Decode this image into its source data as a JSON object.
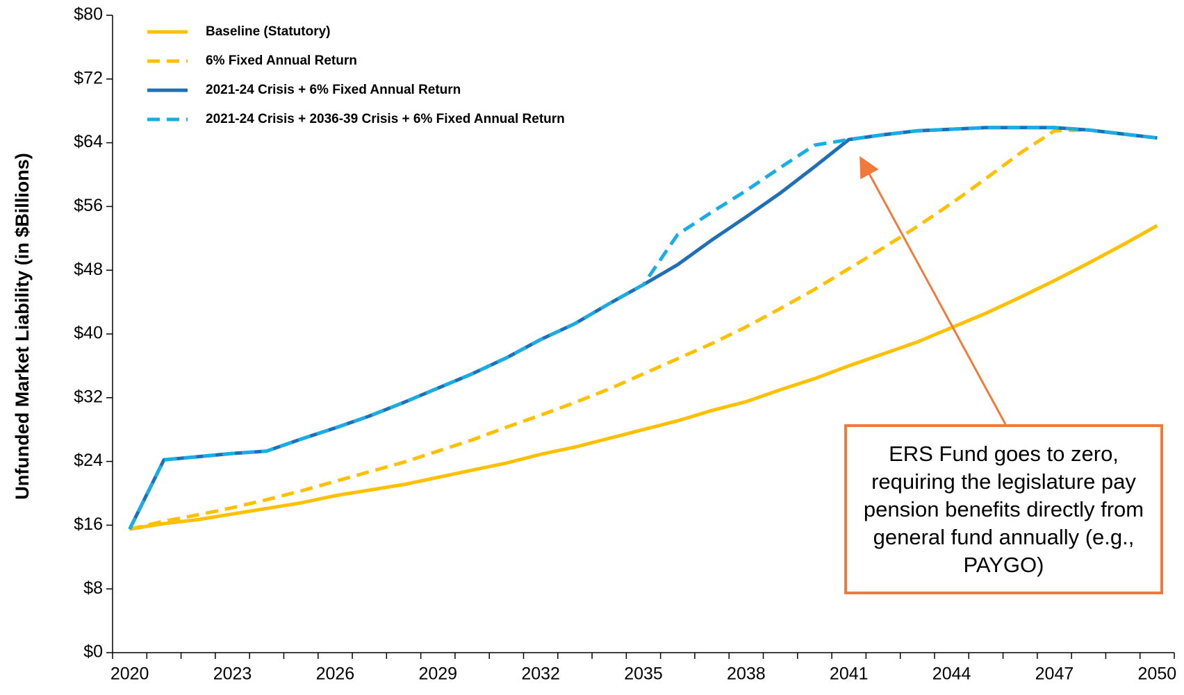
{
  "chart_data": {
    "type": "line",
    "y_label": "Unfunded Market Liability (in $Billions)",
    "x": [
      2020,
      2021,
      2022,
      2023,
      2024,
      2025,
      2026,
      2027,
      2028,
      2029,
      2030,
      2031,
      2032,
      2033,
      2034,
      2035,
      2036,
      2037,
      2038,
      2039,
      2040,
      2041,
      2042,
      2043,
      2044,
      2045,
      2046,
      2047,
      2048,
      2049,
      2050
    ],
    "xlim": [
      2019.5,
      2050.5
    ],
    "xticks": [
      2020,
      2023,
      2026,
      2029,
      2032,
      2035,
      2038,
      2041,
      2044,
      2047,
      2050
    ],
    "ylim": [
      0,
      80
    ],
    "yticks": [
      {
        "value": 0,
        "label": "$0"
      },
      {
        "value": 8,
        "label": "$8"
      },
      {
        "value": 16,
        "label": "$16"
      },
      {
        "value": 24,
        "label": "$24"
      },
      {
        "value": 32,
        "label": "$32"
      },
      {
        "value": 40,
        "label": "$40"
      },
      {
        "value": 48,
        "label": "$48"
      },
      {
        "value": 56,
        "label": "$56"
      },
      {
        "value": 64,
        "label": "$64"
      },
      {
        "value": 72,
        "label": "$72"
      },
      {
        "value": 80,
        "label": "$80"
      }
    ],
    "grid": false,
    "legend_position": "upper-left",
    "series": [
      {
        "name": "Baseline (Statutory)",
        "color": "#FFC000",
        "line_style": "solid",
        "values": [
          15.5,
          16.2,
          16.7,
          17.4,
          18.1,
          18.8,
          19.7,
          20.4,
          21.1,
          22.0,
          22.9,
          23.8,
          24.9,
          25.8,
          26.9,
          28.0,
          29.1,
          30.4,
          31.5,
          33.0,
          34.4,
          36.0,
          37.5,
          39.0,
          40.8,
          42.6,
          44.6,
          46.7,
          48.9,
          51.2,
          53.6
        ]
      },
      {
        "name": "6% Fixed Annual Return",
        "color": "#FFC000",
        "line_style": "dashed",
        "values": [
          15.5,
          16.5,
          17.3,
          18.2,
          19.2,
          20.3,
          21.5,
          22.7,
          23.9,
          25.3,
          26.7,
          28.3,
          29.8,
          31.4,
          33.1,
          35.0,
          36.9,
          38.8,
          40.9,
          43.2,
          45.6,
          48.2,
          50.8,
          53.5,
          56.4,
          59.5,
          62.7,
          65.5,
          65.6,
          65.1,
          64.6
        ]
      },
      {
        "name": "2021-24 Crisis + 6% Fixed Annual Return",
        "color": "#1F6FB5",
        "line_style": "solid",
        "values": [
          15.5,
          24.2,
          24.6,
          25.0,
          25.3,
          26.8,
          28.2,
          29.7,
          31.4,
          33.2,
          35.0,
          37.0,
          39.3,
          41.3,
          43.8,
          46.2,
          48.7,
          51.8,
          54.7,
          57.7,
          61.0,
          64.4,
          65.0,
          65.5,
          65.7,
          65.9,
          65.9,
          65.9,
          65.6,
          65.1,
          64.6
        ]
      },
      {
        "name": "2021-24 Crisis + 2036-39 Crisis + 6% Fixed Annual Return",
        "color": "#1AADE4",
        "line_style": "dashed",
        "values": [
          15.5,
          24.2,
          24.6,
          25.0,
          25.3,
          26.8,
          28.2,
          29.7,
          31.4,
          33.2,
          35.0,
          37.0,
          39.3,
          41.3,
          43.8,
          46.2,
          52.5,
          55.3,
          58.0,
          60.9,
          63.7,
          64.4,
          65.0,
          65.5,
          65.7,
          65.9,
          65.9,
          65.9,
          65.6,
          65.1,
          64.6
        ]
      }
    ],
    "annotation": {
      "text": "ERS Fund goes to zero, requiring the legislature pay pension benefits directly from general fund annually (e.g., PAYGO)",
      "color": "#F07A3C"
    }
  }
}
